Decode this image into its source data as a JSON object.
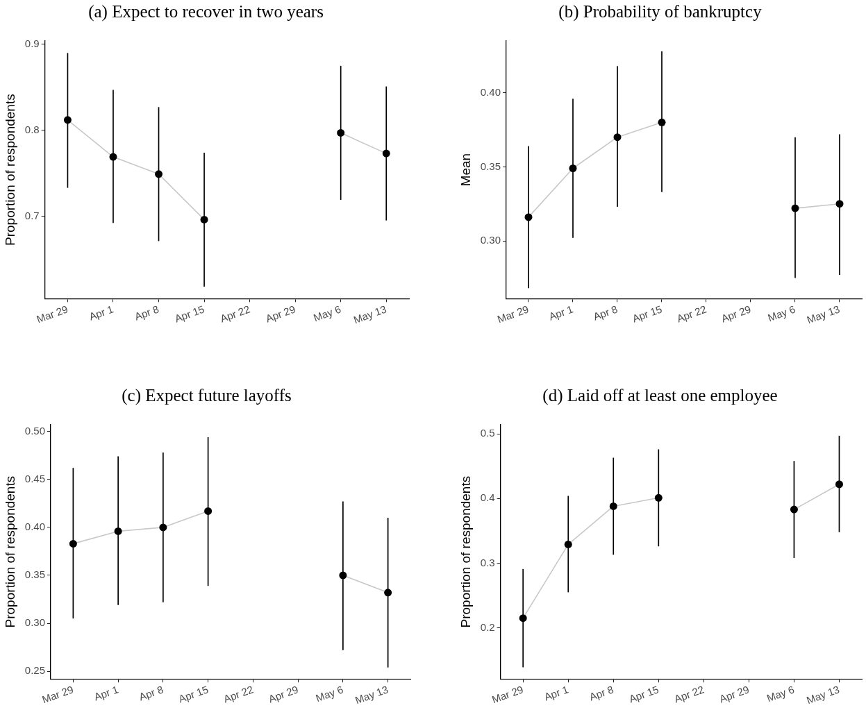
{
  "chart_data": [
    {
      "type": "line",
      "title": "(a) Expect to recover in two years",
      "ylabel": "Proportion of respondents",
      "categories": [
        "Mar 29",
        "Apr 1",
        "Apr 8",
        "Apr 15",
        "Apr 22",
        "Apr 29",
        "May 6",
        "May 13"
      ],
      "values": [
        0.812,
        0.769,
        0.749,
        0.696,
        null,
        null,
        0.797,
        0.773
      ],
      "errors": [
        [
          0.733,
          0.89
        ],
        [
          0.692,
          0.847
        ],
        [
          0.671,
          0.827
        ],
        [
          0.618,
          0.774
        ],
        null,
        null,
        [
          0.719,
          0.875
        ],
        [
          0.695,
          0.851
        ]
      ],
      "color": "#c8c8c8",
      "colors": [
        "#000000",
        "#000000",
        "#000000",
        "#000000",
        "#000000",
        "#000000",
        "#000000",
        "#000000"
      ],
      "marker": "circle",
      "ylim": [
        0.604,
        0.904
      ],
      "yticks": [
        0.7,
        0.8,
        0.9
      ],
      "grid": false
    },
    {
      "type": "line",
      "title": "(b) Probability of bankruptcy",
      "ylabel": "Mean",
      "categories": [
        "Mar 29",
        "Apr 1",
        "Apr 8",
        "Apr 15",
        "Apr 22",
        "Apr 29",
        "May 6",
        "May 13"
      ],
      "values": [
        0.316,
        0.349,
        0.37,
        0.38,
        null,
        null,
        0.322,
        0.325
      ],
      "errors": [
        [
          0.268,
          0.364
        ],
        [
          0.302,
          0.396
        ],
        [
          0.323,
          0.418
        ],
        [
          0.333,
          0.428
        ],
        null,
        null,
        [
          0.275,
          0.37
        ],
        [
          0.277,
          0.372
        ]
      ],
      "color": "#c8c8c8",
      "colors": [
        "#000000",
        "#000000",
        "#000000",
        "#000000",
        "#000000",
        "#000000",
        "#000000",
        "#000000"
      ],
      "marker": "circle",
      "ylim": [
        0.261,
        0.435
      ],
      "yticks": [
        {
          "value": 0.3,
          "label": "0.30"
        },
        0.35,
        {
          "value": 0.4,
          "label": "0.40"
        }
      ],
      "grid": false
    },
    {
      "type": "line",
      "title": "(c) Expect future layoffs",
      "ylabel": "Proportion of respondents",
      "categories": [
        "Mar 29",
        "Apr 1",
        "Apr 8",
        "Apr 15",
        "Apr 22",
        "Apr 29",
        "May 6",
        "May 13"
      ],
      "values": [
        0.383,
        0.396,
        0.4,
        0.417,
        null,
        null,
        0.35,
        0.332
      ],
      "errors": [
        [
          0.305,
          0.462
        ],
        [
          0.319,
          0.474
        ],
        [
          0.322,
          0.478
        ],
        [
          0.339,
          0.494
        ],
        null,
        null,
        [
          0.272,
          0.427
        ],
        [
          0.254,
          0.41
        ]
      ],
      "color": "#c8c8c8",
      "colors": [
        "#000000",
        "#000000",
        "#000000",
        "#000000",
        "#000000",
        "#000000",
        "#000000",
        "#000000"
      ],
      "marker": "circle",
      "ylim": [
        0.242,
        0.507
      ],
      "yticks": [
        0.25,
        {
          "value": 0.3,
          "label": "0.30"
        },
        0.35,
        {
          "value": 0.4,
          "label": "0.40"
        },
        0.45,
        {
          "value": 0.5,
          "label": "0.50"
        }
      ],
      "grid": false
    },
    {
      "type": "line",
      "title": "(d) Laid off at least one employee",
      "ylabel": "Proportion of respondents",
      "categories": [
        "Mar 29",
        "Apr 1",
        "Apr 8",
        "Apr 15",
        "Apr 22",
        "Apr 29",
        "May 6",
        "May 13"
      ],
      "values": [
        0.215,
        0.329,
        0.388,
        0.401,
        null,
        null,
        0.383,
        0.422
      ],
      "errors": [
        [
          0.139,
          0.291
        ],
        [
          0.255,
          0.404
        ],
        [
          0.313,
          0.463
        ],
        [
          0.326,
          0.476
        ],
        null,
        null,
        [
          0.308,
          0.458
        ],
        [
          0.348,
          0.497
        ]
      ],
      "color": "#c8c8c8",
      "colors": [
        "#000000",
        "#000000",
        "#000000",
        "#000000",
        "#000000",
        "#000000",
        "#000000",
        "#000000"
      ],
      "marker": "circle",
      "ylim": [
        0.121,
        0.514
      ],
      "yticks": [
        0.2,
        0.3,
        0.4,
        0.5
      ],
      "grid": false
    }
  ]
}
